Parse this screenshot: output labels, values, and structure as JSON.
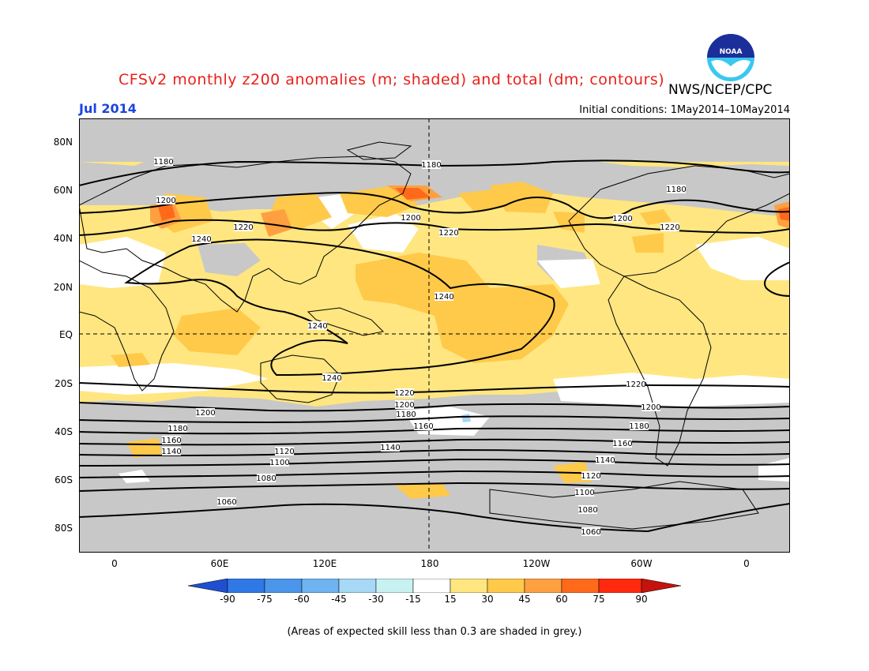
{
  "header": {
    "title": "CFSv2 monthly z200 anomalies (m; shaded) and total (dm; contours)",
    "agency": "NWS/NCEP/CPC",
    "period": "Jul 2014",
    "initial_conditions": "Initial conditions: 1May2014–10May2014"
  },
  "logo": {
    "text": "NOAA",
    "icon": "noaa-logo"
  },
  "axes": {
    "lat_labels": [
      "80N",
      "60N",
      "40N",
      "20N",
      "EQ",
      "20S",
      "40S",
      "60S",
      "80S"
    ],
    "lon_labels": [
      "0",
      "60E",
      "120E",
      "180",
      "120W",
      "60W",
      "0"
    ]
  },
  "colorbar": {
    "labels": [
      "-90",
      "-75",
      "-60",
      "-45",
      "-30",
      "-15",
      "15",
      "30",
      "45",
      "60",
      "75",
      "90"
    ],
    "colors": [
      "#1f4fd0",
      "#2f78e6",
      "#4b96ea",
      "#6fb3f0",
      "#a7d8f5",
      "#c8f2f2",
      "#ffffff",
      "#ffe680",
      "#ffc94a",
      "#ffa040",
      "#ff6a1a",
      "#ff2a0e",
      "#c4120c"
    ]
  },
  "contour_labels": [
    "1180",
    "1180",
    "1180",
    "1200",
    "1200",
    "1200",
    "1220",
    "1220",
    "1220",
    "1240",
    "1240",
    "1240",
    "1240",
    "1220",
    "1220",
    "1200",
    "1200",
    "1200",
    "1180",
    "1180",
    "1180",
    "1160",
    "1160",
    "1160",
    "1140",
    "1140",
    "1140",
    "1120",
    "1120",
    "1100",
    "1100",
    "1080",
    "1080",
    "1060",
    "1060"
  ],
  "footnote": "(Areas of expected skill less than 0.3 are shaded in grey.)",
  "palette": {
    "grey": "#c8c8c8",
    "light_yellow": "#ffe680",
    "orange": "#ffc94a",
    "dark_orange": "#ffa040",
    "red_orange": "#ff6a1a",
    "title_red": "#e8211b",
    "period_blue": "#1c44e0"
  }
}
